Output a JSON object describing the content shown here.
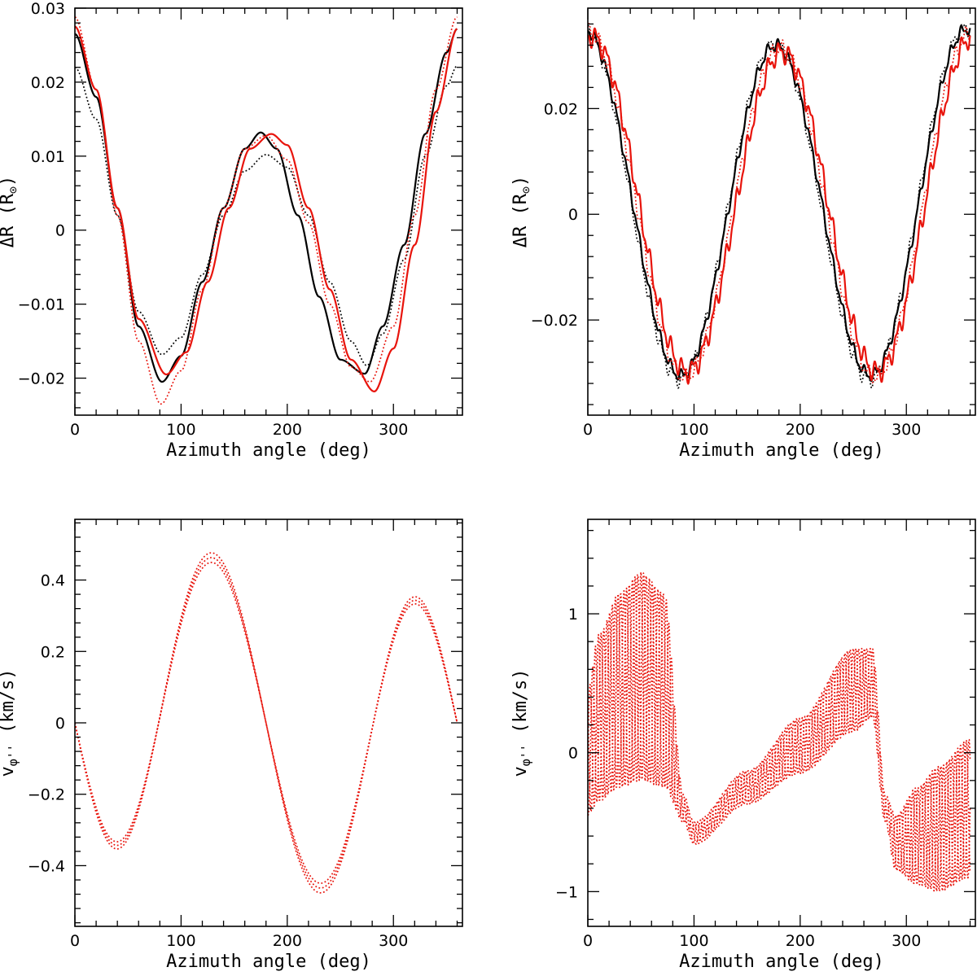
{
  "colors": {
    "black": "#000000",
    "red": "#e8140c"
  },
  "chart_data": [
    {
      "id": "top-left",
      "type": "line",
      "xlabel": "Azimuth angle (deg)",
      "ylabel": "ΔR (R",
      "ylabel_sub": "⊙",
      "ylabel_close": ")",
      "xlim": [
        0,
        365
      ],
      "ylim": [
        -0.025,
        0.03
      ],
      "xticks": [
        0,
        100,
        200,
        300
      ],
      "xtick_labels": [
        "0",
        "100",
        "200",
        "300"
      ],
      "yticks": [
        -0.02,
        -0.01,
        0,
        0.01,
        0.02,
        0.03
      ],
      "ytick_labels": [
        "−0.02",
        "−0.01",
        "0",
        "0.01",
        "0.02",
        "0.03"
      ],
      "series": [
        {
          "name": "black solid",
          "color": "black",
          "style": "solid",
          "x": [
            0,
            20,
            40,
            60,
            82,
            100,
            120,
            140,
            160,
            175,
            190,
            210,
            230,
            250,
            273,
            290,
            310,
            330,
            350,
            360
          ],
          "y": [
            0.0265,
            0.018,
            0.003,
            -0.013,
            -0.0205,
            -0.017,
            -0.007,
            0.003,
            0.011,
            0.0132,
            0.011,
            0.002,
            -0.009,
            -0.0175,
            -0.0194,
            -0.013,
            -0.002,
            0.013,
            0.024,
            0.0272
          ]
        },
        {
          "name": "black dotted",
          "color": "black",
          "style": "dotted",
          "x": [
            0,
            20,
            40,
            60,
            82,
            100,
            120,
            140,
            160,
            180,
            200,
            220,
            240,
            260,
            275,
            290,
            310,
            330,
            350,
            360
          ],
          "y": [
            0.022,
            0.015,
            0.002,
            -0.011,
            -0.0168,
            -0.0145,
            -0.006,
            0.002,
            0.008,
            0.0102,
            0.0085,
            0.002,
            -0.007,
            -0.015,
            -0.0183,
            -0.014,
            -0.004,
            0.01,
            0.0195,
            0.0222
          ]
        },
        {
          "name": "red solid",
          "color": "red",
          "style": "solid",
          "x": [
            0,
            20,
            40,
            60,
            86,
            105,
            125,
            145,
            165,
            185,
            200,
            220,
            240,
            260,
            282,
            300,
            320,
            340,
            360
          ],
          "y": [
            0.0275,
            0.019,
            0.003,
            -0.012,
            -0.0195,
            -0.0165,
            -0.007,
            0.003,
            0.011,
            0.013,
            0.0115,
            0.003,
            -0.008,
            -0.0175,
            -0.0218,
            -0.016,
            -0.002,
            0.016,
            0.0272
          ]
        },
        {
          "name": "red dotted",
          "color": "red",
          "style": "dotted",
          "x": [
            0,
            20,
            40,
            60,
            81,
            100,
            120,
            140,
            160,
            180,
            200,
            220,
            240,
            260,
            278,
            300,
            320,
            340,
            360
          ],
          "y": [
            0.0288,
            0.019,
            0.002,
            -0.015,
            -0.0235,
            -0.019,
            -0.008,
            0.003,
            0.011,
            0.0128,
            0.0095,
            0.001,
            -0.01,
            -0.0185,
            -0.0205,
            -0.013,
            0.002,
            0.019,
            0.0288
          ]
        }
      ]
    },
    {
      "id": "top-right",
      "type": "line",
      "xlabel": "Azimuth angle (deg)",
      "ylabel": "ΔR (R",
      "ylabel_sub": "⊙",
      "ylabel_close": ")",
      "xlim": [
        0,
        365
      ],
      "ylim": [
        -0.038,
        0.039
      ],
      "xticks": [
        0,
        100,
        200,
        300
      ],
      "xtick_labels": [
        "0",
        "100",
        "200",
        "300"
      ],
      "yticks": [
        -0.02,
        0,
        0.02
      ],
      "ytick_labels": [
        "−0.02",
        "0",
        "0.02"
      ],
      "series": [
        {
          "name": "black solid",
          "color": "black",
          "style": "solid",
          "base": 0.0015,
          "phase": -3,
          "amp": 0.032,
          "wiggle": 0.0009
        },
        {
          "name": "black dotted",
          "color": "black",
          "style": "dotted",
          "base": 0.0012,
          "phase": -4,
          "amp": 0.0325,
          "wiggle": 0.0011
        },
        {
          "name": "red solid",
          "color": "red",
          "style": "solid",
          "base": 0.0012,
          "phase": 3,
          "amp": 0.031,
          "wiggle": 0.0016
        },
        {
          "name": "red dotted",
          "color": "red",
          "style": "dotted",
          "base": 0.001,
          "phase": 1,
          "amp": 0.0318,
          "wiggle": 0.0012
        }
      ]
    },
    {
      "id": "bottom-left",
      "type": "line",
      "xlabel": "Azimuth angle (deg)",
      "ylabel": "v",
      "ylabel_sub": "φ''",
      "ylabel_close": " (km/s)",
      "xlim": [
        0,
        365
      ],
      "ylim": [
        -0.57,
        0.57
      ],
      "xticks": [
        0,
        100,
        200,
        300
      ],
      "xtick_labels": [
        "0",
        "100",
        "200",
        "300"
      ],
      "yticks": [
        -0.4,
        -0.2,
        0,
        0.2,
        0.4
      ],
      "ytick_labels": [
        "−0.4",
        "−0.2",
        "0",
        "0.2",
        "0.4"
      ],
      "series": [
        {
          "name": "red dotted 1",
          "color": "red",
          "style": "dotted",
          "a1": 0.117,
          "a2": -0.383,
          "a3": -0.036,
          "scale": 1.0
        },
        {
          "name": "red dotted 2",
          "color": "red",
          "style": "dotted",
          "a1": 0.117,
          "a2": -0.383,
          "a3": -0.036,
          "scale": 1.03
        },
        {
          "name": "red dotted 3",
          "color": "red",
          "style": "dotted",
          "a1": 0.117,
          "a2": -0.383,
          "a3": -0.036,
          "scale": 1.06
        }
      ]
    },
    {
      "id": "bottom-right",
      "type": "line",
      "xlabel": "Azimuth angle (deg)",
      "ylabel": "v",
      "ylabel_sub": "φ''",
      "ylabel_close": " (km/s)",
      "xlim": [
        0,
        365
      ],
      "ylim": [
        -1.25,
        1.68
      ],
      "xticks": [
        0,
        100,
        200,
        300
      ],
      "xtick_labels": [
        "0",
        "100",
        "200",
        "300"
      ],
      "yticks": [
        -1,
        0,
        1
      ],
      "ytick_labels": [
        "−1",
        "0",
        "1"
      ],
      "series": [
        {
          "name": "red dotted 1",
          "color": "red",
          "style": "dotted",
          "env_x": [
            0,
            10,
            30,
            50,
            72,
            90,
            100,
            150,
            200,
            250,
            268,
            280,
            290,
            310,
            330,
            360
          ],
          "env_mid": [
            0.0,
            0.25,
            0.45,
            0.55,
            0.45,
            -0.4,
            -0.58,
            -0.25,
            0.05,
            0.45,
            0.5,
            -0.4,
            -0.65,
            -0.6,
            -0.55,
            -0.4
          ],
          "env_amp": [
            0.45,
            0.6,
            0.7,
            0.75,
            0.7,
            0.1,
            0.08,
            0.12,
            0.2,
            0.3,
            0.25,
            0.1,
            0.2,
            0.35,
            0.45,
            0.5
          ],
          "period": 8.0,
          "shift": 0
        },
        {
          "name": "red dotted 2",
          "color": "red",
          "style": "dotted",
          "env_x": [
            0,
            10,
            30,
            50,
            72,
            90,
            100,
            150,
            200,
            250,
            268,
            280,
            290,
            310,
            330,
            360
          ],
          "env_mid": [
            0.0,
            0.25,
            0.45,
            0.55,
            0.45,
            -0.4,
            -0.58,
            -0.25,
            0.05,
            0.45,
            0.5,
            -0.4,
            -0.65,
            -0.6,
            -0.55,
            -0.4
          ],
          "env_amp": [
            0.45,
            0.6,
            0.7,
            0.75,
            0.7,
            0.1,
            0.08,
            0.12,
            0.2,
            0.3,
            0.25,
            0.1,
            0.2,
            0.35,
            0.45,
            0.5
          ],
          "period": 8.0,
          "shift": 3.0
        },
        {
          "name": "red dotted 3",
          "color": "red",
          "style": "dotted",
          "env_x": [
            0,
            10,
            30,
            50,
            72,
            90,
            100,
            150,
            200,
            250,
            268,
            280,
            290,
            310,
            330,
            360
          ],
          "env_mid": [
            0.0,
            0.25,
            0.45,
            0.55,
            0.45,
            -0.4,
            -0.58,
            -0.25,
            0.05,
            0.45,
            0.5,
            -0.4,
            -0.65,
            -0.6,
            -0.55,
            -0.4
          ],
          "env_amp": [
            0.45,
            0.6,
            0.7,
            0.75,
            0.7,
            0.1,
            0.08,
            0.12,
            0.2,
            0.3,
            0.25,
            0.1,
            0.2,
            0.35,
            0.45,
            0.5
          ],
          "period": 8.0,
          "shift": 5.5
        }
      ]
    }
  ]
}
